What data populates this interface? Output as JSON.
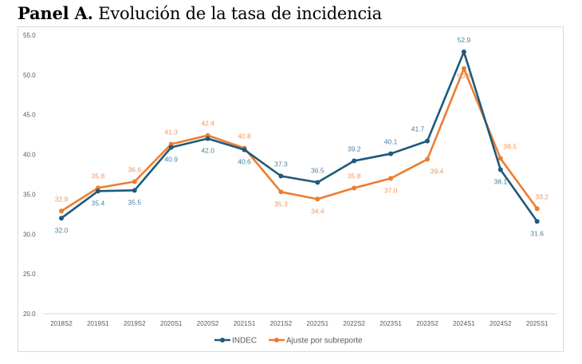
{
  "page": {
    "title_bold": "Panel A.",
    "title_rest": " Evolución de la tasa de incidencia"
  },
  "chart_data": {
    "type": "line",
    "title": "Panel A. Evolución de la tasa de incidencia",
    "xlabel": "",
    "ylabel": "",
    "ylim": [
      20.0,
      55.0
    ],
    "yticks": [
      "20.0",
      "25.0",
      "30.0",
      "35.0",
      "40.0",
      "45.0",
      "50.0",
      "55.0"
    ],
    "ytick_values": [
      20,
      25,
      30,
      35,
      40,
      45,
      50,
      55
    ],
    "grid": false,
    "legend_position": "bottom",
    "categories": [
      "2018S2",
      "2019S1",
      "2019S2",
      "2020S1",
      "2020S2",
      "2021S1",
      "2021S2",
      "2022S1",
      "2022S2",
      "2023S1",
      "2023S2",
      "2024S1",
      "2024S2",
      "2025S1"
    ],
    "series": [
      {
        "name": "INDEC",
        "color": "#1f5a7a",
        "label_color": "#4a7f9e",
        "values": [
          32.0,
          35.4,
          35.5,
          40.9,
          42.0,
          40.6,
          37.3,
          36.5,
          39.2,
          40.1,
          41.7,
          52.9,
          38.1,
          31.6
        ],
        "labels": [
          "32.0",
          "35.4",
          "35.5",
          "40.9",
          "42.0",
          "40.6",
          "37.3",
          "36.5",
          "39.2",
          "40.1",
          "41.7",
          "52.9",
          "38.1",
          "31.6"
        ]
      },
      {
        "name": "Ajuste por subreporte",
        "color": "#ed7d31",
        "label_color": "#f0955a",
        "values": [
          32.9,
          35.8,
          36.6,
          41.3,
          42.4,
          40.8,
          35.3,
          34.4,
          35.8,
          37.0,
          39.4,
          50.8,
          39.5,
          33.2
        ],
        "labels": [
          "32.9",
          "35.8",
          "36.6",
          "41.3",
          "42.4",
          "40.8",
          "35.3",
          "34.4",
          "35.8",
          "37.0",
          "39.4",
          "50.8",
          "39.5",
          "33.2"
        ]
      }
    ]
  }
}
